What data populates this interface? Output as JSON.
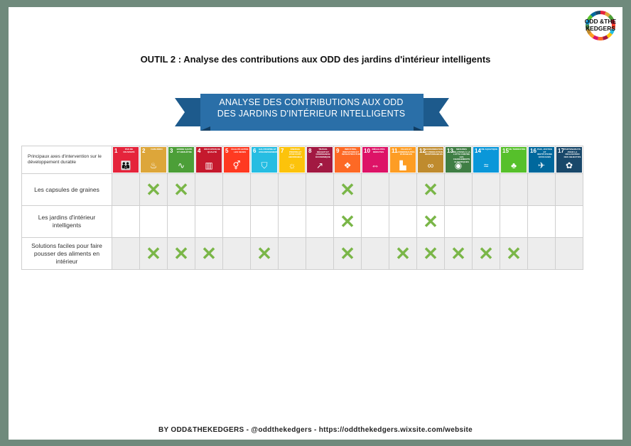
{
  "logo": {
    "text_line1": "ODD &THE",
    "text_line2": "KEDGERS",
    "colors": [
      "#e5243b",
      "#dda63a",
      "#4c9f38",
      "#c5192d",
      "#ff3a21",
      "#26bde2",
      "#fcc30b",
      "#a21942",
      "#fd6925",
      "#dd1367",
      "#fd9d24",
      "#bf8b2e",
      "#3f7e44",
      "#0a97d9",
      "#56c02b",
      "#00689d",
      "#19486a"
    ]
  },
  "title": "OUTIL 2 : Analyse des contributions aux ODD des jardins d'intérieur intelligents",
  "banner": {
    "line1": "ANALYSE DES CONTRIBUTIONS AUX ODD",
    "line2": "DES JARDINS D'INTÉRIEUR INTELLIGENTS",
    "color": "#2a6fa8"
  },
  "table": {
    "corner_label": "Principaux axes d'intervention sur le développement durable",
    "sdgs": [
      {
        "num": "1",
        "label": "Pas de pauvreté",
        "color": "#e5243b",
        "icon": "family-icon",
        "glyph": "👪"
      },
      {
        "num": "2",
        "label": "Faim zéro",
        "color": "#dda63a",
        "icon": "bowl-icon",
        "glyph": "♨"
      },
      {
        "num": "3",
        "label": "Bonne santé et bien-être",
        "color": "#4c9f38",
        "icon": "heartbeat-icon",
        "glyph": "∿"
      },
      {
        "num": "4",
        "label": "Éducation de qualité",
        "color": "#c5192d",
        "icon": "book-icon",
        "glyph": "▥"
      },
      {
        "num": "5",
        "label": "Égalité entre les sexes",
        "color": "#ff3a21",
        "icon": "gender-icon",
        "glyph": "⚥"
      },
      {
        "num": "6",
        "label": "Eau propre et assainissement",
        "color": "#26bde2",
        "icon": "water-icon",
        "glyph": "⛉"
      },
      {
        "num": "7",
        "label": "Énergie propre et d'un coût abordable",
        "color": "#fcc30b",
        "icon": "sun-icon",
        "glyph": "☼"
      },
      {
        "num": "8",
        "label": "Travail décent et croissance économique",
        "color": "#a21942",
        "icon": "growth-icon",
        "glyph": "↗"
      },
      {
        "num": "9",
        "label": "Industrie, innovation et infrastructure",
        "color": "#fd6925",
        "icon": "cubes-icon",
        "glyph": "❖"
      },
      {
        "num": "10",
        "label": "Inégalités réduites",
        "color": "#dd1367",
        "icon": "equal-icon",
        "glyph": "⇔"
      },
      {
        "num": "11",
        "label": "Villes et communautés durables",
        "color": "#fd9d24",
        "icon": "city-icon",
        "glyph": "▙"
      },
      {
        "num": "12",
        "label": "Consommation et production responsables",
        "color": "#bf8b2e",
        "icon": "infinity-icon",
        "glyph": "∞"
      },
      {
        "num": "13",
        "label": "Mesures relatives à la lutte contre les changements climatiques",
        "color": "#3f7e44",
        "icon": "eye-icon",
        "glyph": "◉"
      },
      {
        "num": "14",
        "label": "Vie aquatique",
        "color": "#0a97d9",
        "icon": "fish-icon",
        "glyph": "≈"
      },
      {
        "num": "15",
        "label": "Vie terrestre",
        "color": "#56c02b",
        "icon": "tree-icon",
        "glyph": "♣"
      },
      {
        "num": "16",
        "label": "Paix, justice et institutions efficaces",
        "color": "#00689d",
        "icon": "dove-icon",
        "glyph": "✈"
      },
      {
        "num": "17",
        "label": "Partenariats pour la réalisation des objectifs",
        "color": "#19486a",
        "icon": "flower-icon",
        "glyph": "✿"
      }
    ],
    "rows": [
      {
        "label": "Les capsules de graines",
        "checked": [
          2,
          3,
          9,
          12
        ]
      },
      {
        "label": "Les jardins d'intérieur intelligents",
        "checked": [
          9,
          12
        ]
      },
      {
        "label": "Solutions faciles pour faire pousser des aliments en intérieur",
        "checked": [
          2,
          3,
          4,
          6,
          9,
          11,
          12,
          13,
          14,
          15
        ]
      }
    ],
    "mark": "✕",
    "mark_color": "#7ab648"
  },
  "footer": "BY ODD&THEKEDGERS  -  @oddthekedgers  -  https://oddthekedgers.wixsite.com/website"
}
